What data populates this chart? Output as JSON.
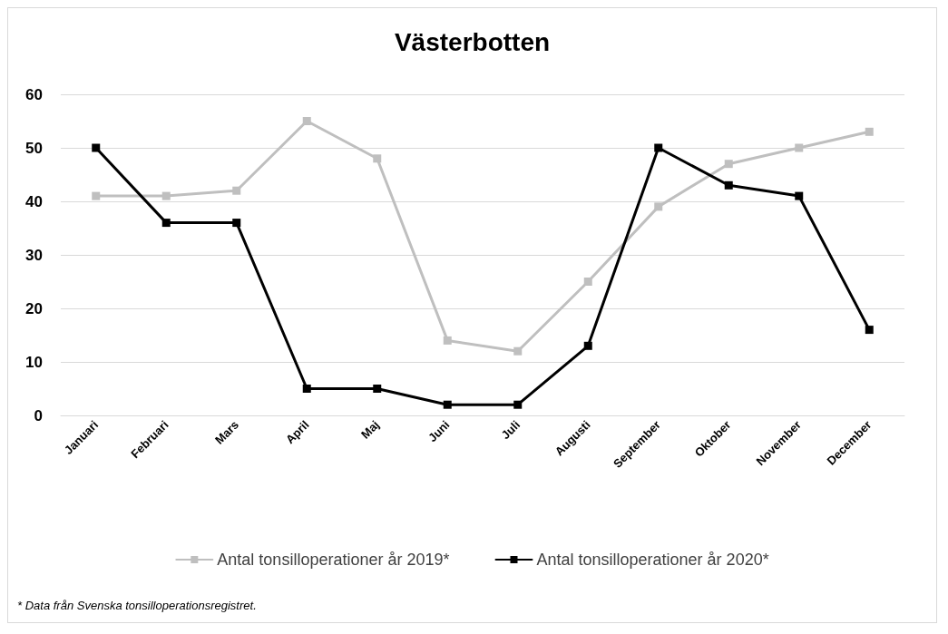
{
  "chart_data": {
    "type": "line",
    "title": "Västerbotten",
    "categories": [
      "Januari",
      "Februari",
      "Mars",
      "April",
      "Maj",
      "Juni",
      "Juli",
      "Augusti",
      "September",
      "Oktober",
      "November",
      "December"
    ],
    "series": [
      {
        "name": "Antal tonsilloperationer år 2019*",
        "color": "#bfbfbf",
        "values": [
          41,
          41,
          42,
          55,
          48,
          14,
          12,
          25,
          39,
          47,
          50,
          53
        ]
      },
      {
        "name": "Antal tonsilloperationer år 2020*",
        "color": "#000000",
        "values": [
          50,
          36,
          36,
          5,
          5,
          2,
          2,
          13,
          50,
          43,
          41,
          16
        ]
      }
    ],
    "ylim": [
      0,
      60
    ],
    "yticks": [
      0,
      10,
      20,
      30,
      40,
      50,
      60
    ],
    "grid": "y",
    "legend": "bottom",
    "marker": "square",
    "line_style": "solid",
    "annotations": [
      "* Data från Svenska tonsilloperationsregistret."
    ]
  }
}
